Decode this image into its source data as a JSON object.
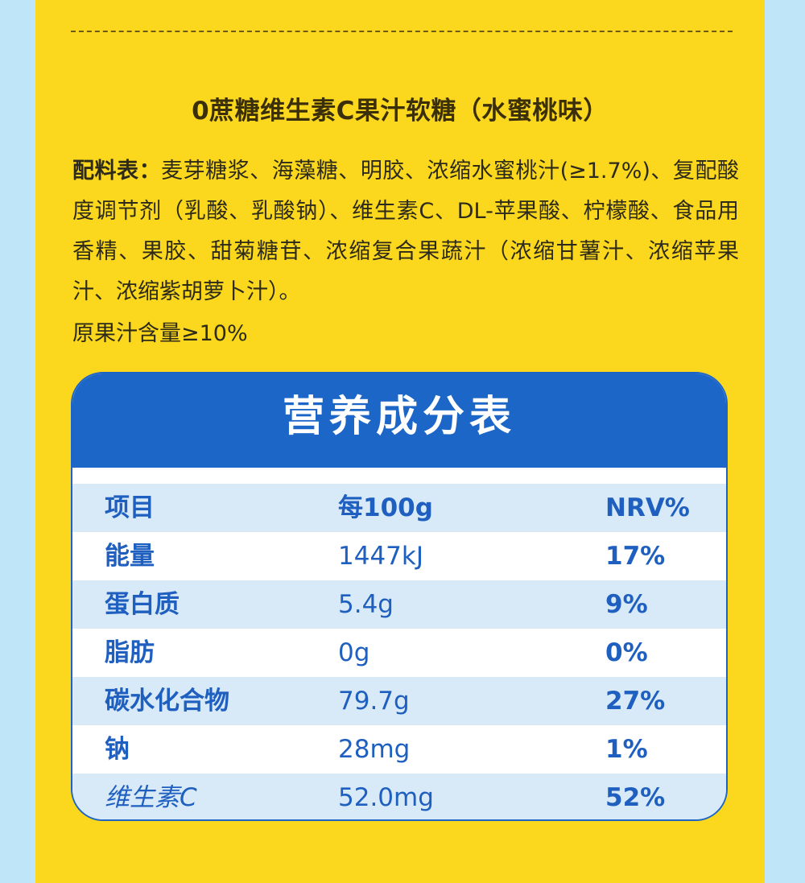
{
  "product": {
    "title": "0蔗糖维生素C果汁软糖（水蜜桃味）"
  },
  "ingredients": {
    "label": "配料表：",
    "text": "麦芽糖浆、海藻糖、明胶、浓缩水蜜桃汁(≥1.7%)、复配酸度调节剂（乳酸、乳酸钠）、维生素C、DL-苹果酸、柠檬酸、食品用香精、果胶、甜菊糖苷、浓缩复合果蔬汁（浓缩甘薯汁、浓缩苹果汁、浓缩紫胡萝卜汁）。",
    "juice_content": "原果汁含量≥10%"
  },
  "nutrition": {
    "title": "营养成分表",
    "header": [
      "项目",
      "每100g",
      "NRV%"
    ],
    "rows": [
      [
        "能量",
        "1447kJ",
        "17%"
      ],
      [
        "蛋白质",
        "5.4g",
        "9%"
      ],
      [
        "脂肪",
        "0g",
        "0%"
      ],
      [
        "碳水化合物",
        "79.7g",
        "27%"
      ],
      [
        "钠",
        "28mg",
        "1%"
      ],
      [
        "维生素C",
        "52.0mg",
        "52%"
      ]
    ]
  },
  "colors": {
    "background": "#bfe5f8",
    "panel": "#fbd81e",
    "table_blue": "#1c66c8",
    "row_alt": "#d8eaf8"
  }
}
